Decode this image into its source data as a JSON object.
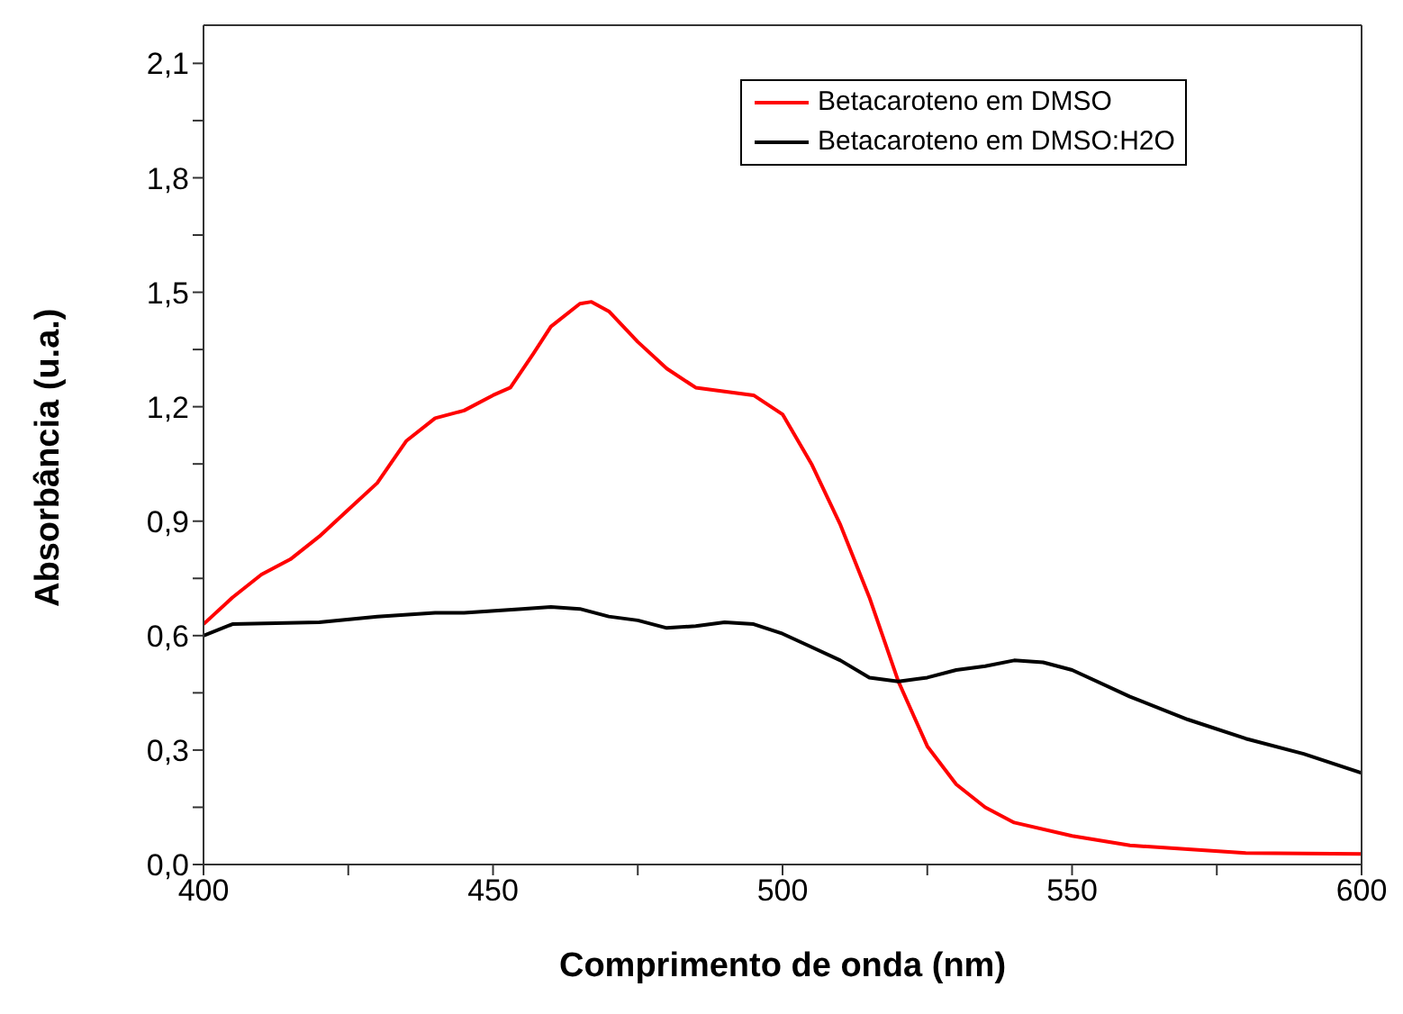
{
  "chart_data": {
    "type": "line",
    "xlabel": "Comprimento de onda (nm)",
    "ylabel": "Absorbância (u.a.)",
    "xlim": [
      400,
      600
    ],
    "ylim": [
      0,
      2.2
    ],
    "xticks": [
      400,
      {
        "value": 425,
        "label": null
      },
      450,
      {
        "value": 475,
        "label": null
      },
      500,
      {
        "value": 525,
        "label": null
      },
      550,
      {
        "value": 575,
        "label": null
      },
      600
    ],
    "yticks": [
      {
        "value": 0,
        "label": "0,0"
      },
      {
        "value": 0.15,
        "label": null
      },
      {
        "value": 0.3,
        "label": "0,3"
      },
      {
        "value": 0.45,
        "label": null
      },
      {
        "value": 0.6,
        "label": "0,6"
      },
      {
        "value": 0.75,
        "label": null
      },
      {
        "value": 0.9,
        "label": "0,9"
      },
      {
        "value": 1.05,
        "label": null
      },
      {
        "value": 1.2,
        "label": "1,2"
      },
      {
        "value": 1.35,
        "label": null
      },
      {
        "value": 1.5,
        "label": "1,5"
      },
      {
        "value": 1.65,
        "label": null
      },
      {
        "value": 1.8,
        "label": "1,8"
      },
      {
        "value": 1.95,
        "label": null
      },
      {
        "value": 2.1,
        "label": "2,1"
      }
    ],
    "legend": "top right",
    "marker": "none",
    "line_style": "solid",
    "series": [
      {
        "name": "Betacaroteno em DMSO",
        "color": "#ff0000",
        "x": [
          400,
          405,
          410,
          415,
          420,
          425,
          430,
          435,
          440,
          445,
          450,
          453,
          457,
          460,
          465,
          467,
          470,
          475,
          480,
          485,
          490,
          495,
          500,
          505,
          510,
          515,
          520,
          525,
          530,
          535,
          540,
          550,
          560,
          570,
          580,
          600
        ],
        "values": [
          0.63,
          0.7,
          0.76,
          0.8,
          0.86,
          0.93,
          1.0,
          1.11,
          1.17,
          1.19,
          1.23,
          1.25,
          1.34,
          1.41,
          1.47,
          1.475,
          1.45,
          1.37,
          1.3,
          1.25,
          1.24,
          1.23,
          1.18,
          1.05,
          0.89,
          0.7,
          0.48,
          0.31,
          0.21,
          0.15,
          0.11,
          0.075,
          0.05,
          0.04,
          0.03,
          0.028
        ]
      },
      {
        "name": "Betacaroteno em DMSO:H2O",
        "color": "#000000",
        "x": [
          400,
          405,
          420,
          430,
          440,
          445,
          455,
          460,
          465,
          470,
          475,
          480,
          485,
          490,
          495,
          500,
          505,
          510,
          515,
          520,
          525,
          530,
          535,
          540,
          545,
          550,
          560,
          570,
          580,
          590,
          600
        ],
        "values": [
          0.6,
          0.63,
          0.635,
          0.65,
          0.66,
          0.66,
          0.67,
          0.675,
          0.67,
          0.65,
          0.64,
          0.62,
          0.625,
          0.635,
          0.63,
          0.605,
          0.57,
          0.535,
          0.49,
          0.48,
          0.49,
          0.51,
          0.52,
          0.535,
          0.53,
          0.51,
          0.44,
          0.38,
          0.33,
          0.29,
          0.24
        ]
      }
    ]
  }
}
